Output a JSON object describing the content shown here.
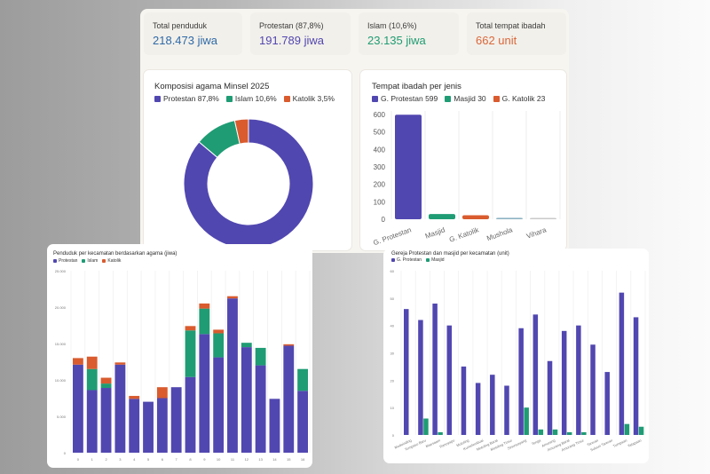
{
  "colors": {
    "protestan": "#5147b0",
    "islam": "#1f9c74",
    "katolik": "#d95b2e",
    "mushola": "#8fb3c4",
    "vihara": "#c9c9c9",
    "stat_total": "#2e6aa8",
    "stat_protestan": "#5147b0",
    "stat_islam": "#1f9c74",
    "stat_ibadah": "#d9683c"
  },
  "stats": [
    {
      "label": "Total penduduk",
      "value": "218.473 jiwa"
    },
    {
      "label": "Protestan (87,8%)",
      "value": "191.789 jiwa"
    },
    {
      "label": "Islam (10,6%)",
      "value": "23.135 jiwa"
    },
    {
      "label": "Total tempat ibadah",
      "value": "662 unit"
    }
  ],
  "chart_data": [
    {
      "id": "donut",
      "type": "pie",
      "title": "Komposisi agama Minsel 2025",
      "legend": [
        "Protestan 87,8%",
        "Islam 10,6%",
        "Katolik 3,5%"
      ],
      "categories": [
        "Protestan",
        "Islam",
        "Katolik"
      ],
      "values": [
        87.8,
        10.6,
        3.5
      ],
      "legend_position": "top-left"
    },
    {
      "id": "ibadah",
      "type": "bar",
      "title": "Tempat ibadah per jenis",
      "legend": [
        "G. Protestan 599",
        "Masjid 30",
        "G. Katolik 23"
      ],
      "categories": [
        "G. Protestan",
        "Masjid",
        "G. Katolik",
        "Mushola",
        "Vihara"
      ],
      "values": [
        599,
        30,
        23,
        8,
        2
      ],
      "yticks": [
        "0",
        "100",
        "200",
        "300",
        "400",
        "500",
        "600"
      ],
      "ylim": [
        0,
        600
      ],
      "grid": true,
      "legend_position": "top-left"
    },
    {
      "id": "penduduk",
      "type": "bar",
      "stacked": true,
      "title": "Penduduk per kecamatan berdasarkan agama (jiwa)",
      "legend": [
        "Protestan",
        "Islam",
        "Katolik"
      ],
      "categories": [
        "0",
        "1",
        "2",
        "3",
        "4",
        "5",
        "6",
        "7",
        "8",
        "9",
        "10",
        "11",
        "12",
        "13",
        "14",
        "15",
        "16"
      ],
      "series": [
        {
          "name": "Protestan",
          "values": [
            12100,
            8600,
            8900,
            12100,
            7400,
            7000,
            7500,
            9000,
            10400,
            16300,
            13100,
            21200,
            14500,
            12000,
            7400,
            14700,
            8500
          ]
        },
        {
          "name": "Islam",
          "values": [
            0,
            2900,
            600,
            0,
            0,
            0,
            0,
            0,
            6400,
            3500,
            3300,
            0,
            600,
            2400,
            0,
            0,
            3000
          ]
        },
        {
          "name": "Katolik",
          "values": [
            900,
            1700,
            800,
            300,
            400,
            0,
            1500,
            0,
            600,
            700,
            500,
            300,
            0,
            0,
            0,
            200,
            0
          ]
        }
      ],
      "yticks": [
        "0",
        "5.000",
        "10.000",
        "15.000",
        "20.000",
        "25.000"
      ],
      "ylim": [
        0,
        25000
      ],
      "grid": true,
      "legend_position": "top-left"
    },
    {
      "id": "gereja",
      "type": "bar",
      "title": "Gereja Protestan dan masjid per kecamatan (unit)",
      "legend": [
        "G. Protestan",
        "Masjid"
      ],
      "categories": [
        "Modoinding",
        "Tompaso Baru",
        "Maesaam",
        "Ranoyapo",
        "Motoling",
        "Kumelembuai",
        "Motoling Barat",
        "Motoling Timur",
        "Sinonsayang",
        "Tenga",
        "Amurang",
        "Amurang Barat",
        "Amurang Timur",
        "Tareran",
        "Suluun Tareran",
        "Tumpaan",
        "Tatapaan"
      ],
      "series": [
        {
          "name": "G. Protestan",
          "values": [
            46,
            42,
            48,
            40,
            25,
            19,
            22,
            18,
            39,
            44,
            27,
            38,
            40,
            33,
            23,
            52,
            43
          ]
        },
        {
          "name": "Masjid",
          "values": [
            0,
            6,
            1,
            0,
            0,
            0,
            0,
            0,
            10,
            2,
            2,
            1,
            1,
            0,
            0,
            4,
            3
          ]
        }
      ],
      "yticks": [
        "0",
        "10",
        "20",
        "30",
        "40",
        "50",
        "60"
      ],
      "ylim": [
        0,
        60
      ],
      "grid": true,
      "legend_position": "top-left"
    }
  ]
}
